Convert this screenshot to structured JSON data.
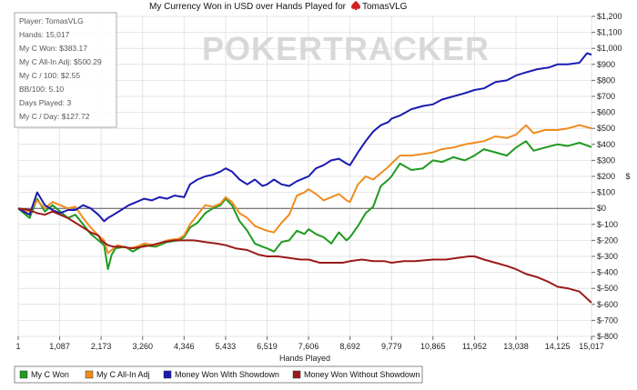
{
  "chart_data": {
    "type": "line",
    "title": "My Currency Won in USD over Hands Played for",
    "player_name": "TomasVLG",
    "xlabel": "Hands Played",
    "ylabel": "$",
    "watermark": "POKERTRACKER",
    "xlim": [
      1,
      15017
    ],
    "ylim": [
      -800,
      1200
    ],
    "x_ticks": [
      "1",
      "1,087",
      "2,173",
      "3,260",
      "4,346",
      "5,433",
      "6,519",
      "7,606",
      "8,692",
      "9,779",
      "10,865",
      "11,952",
      "13,038",
      "14,125",
      "15,017"
    ],
    "y_ticks": [
      "$1,200",
      "$1,100",
      "$1,000",
      "$900",
      "$800",
      "$700",
      "$600",
      "$500",
      "$400",
      "$300",
      "$200",
      "$100",
      "$0",
      "$-100",
      "$-200",
      "$-300",
      "$-400",
      "$-500",
      "$-600",
      "$-700",
      "$-800"
    ],
    "stats": [
      "Player: TomasVLG",
      "Hands: 15,017",
      "My C Won: $383.17",
      "My C All-In Adj: $500.29",
      "My C / 100: $2.55",
      "BB/100: 5.10",
      "Days Played: 3",
      "My C / Day: $127.72"
    ],
    "series": [
      {
        "name": "My C Won",
        "color": "#1f9a1f",
        "points": [
          [
            1,
            0
          ],
          [
            300,
            -60
          ],
          [
            500,
            60
          ],
          [
            700,
            -20
          ],
          [
            900,
            20
          ],
          [
            1100,
            -20
          ],
          [
            1300,
            -60
          ],
          [
            1500,
            -40
          ],
          [
            1700,
            -100
          ],
          [
            1900,
            -160
          ],
          [
            2100,
            -200
          ],
          [
            2250,
            -230
          ],
          [
            2350,
            -380
          ],
          [
            2450,
            -290
          ],
          [
            2550,
            -250
          ],
          [
            2800,
            -240
          ],
          [
            3000,
            -270
          ],
          [
            3300,
            -230
          ],
          [
            3600,
            -240
          ],
          [
            3900,
            -210
          ],
          [
            4200,
            -200
          ],
          [
            4346,
            -180
          ],
          [
            4500,
            -120
          ],
          [
            4700,
            -90
          ],
          [
            4900,
            -30
          ],
          [
            5100,
            0
          ],
          [
            5300,
            20
          ],
          [
            5433,
            60
          ],
          [
            5600,
            20
          ],
          [
            5800,
            -80
          ],
          [
            6000,
            -140
          ],
          [
            6200,
            -220
          ],
          [
            6400,
            -240
          ],
          [
            6519,
            -250
          ],
          [
            6700,
            -270
          ],
          [
            6900,
            -210
          ],
          [
            7100,
            -200
          ],
          [
            7300,
            -140
          ],
          [
            7500,
            -160
          ],
          [
            7606,
            -130
          ],
          [
            7800,
            -160
          ],
          [
            8000,
            -180
          ],
          [
            8200,
            -220
          ],
          [
            8400,
            -150
          ],
          [
            8600,
            -200
          ],
          [
            8692,
            -180
          ],
          [
            8900,
            -110
          ],
          [
            9100,
            -30
          ],
          [
            9300,
            10
          ],
          [
            9500,
            140
          ],
          [
            9700,
            180
          ],
          [
            9779,
            200
          ],
          [
            10000,
            280
          ],
          [
            10300,
            240
          ],
          [
            10600,
            250
          ],
          [
            10865,
            300
          ],
          [
            11100,
            290
          ],
          [
            11400,
            320
          ],
          [
            11700,
            300
          ],
          [
            11952,
            330
          ],
          [
            12200,
            370
          ],
          [
            12500,
            350
          ],
          [
            12800,
            330
          ],
          [
            13038,
            380
          ],
          [
            13300,
            420
          ],
          [
            13500,
            360
          ],
          [
            13800,
            380
          ],
          [
            14125,
            400
          ],
          [
            14400,
            390
          ],
          [
            14700,
            410
          ],
          [
            15017,
            383.17
          ]
        ]
      },
      {
        "name": "My C All-In Adj",
        "color": "#f08c1e",
        "points": [
          [
            1,
            0
          ],
          [
            300,
            -20
          ],
          [
            500,
            50
          ],
          [
            700,
            0
          ],
          [
            900,
            40
          ],
          [
            1100,
            20
          ],
          [
            1300,
            0
          ],
          [
            1500,
            10
          ],
          [
            1700,
            -60
          ],
          [
            1900,
            -120
          ],
          [
            2100,
            -170
          ],
          [
            2250,
            -200
          ],
          [
            2350,
            -280
          ],
          [
            2450,
            -260
          ],
          [
            2600,
            -230
          ],
          [
            2900,
            -250
          ],
          [
            3100,
            -240
          ],
          [
            3300,
            -220
          ],
          [
            3600,
            -230
          ],
          [
            3900,
            -200
          ],
          [
            4200,
            -190
          ],
          [
            4346,
            -170
          ],
          [
            4500,
            -100
          ],
          [
            4700,
            -40
          ],
          [
            4900,
            20
          ],
          [
            5100,
            10
          ],
          [
            5300,
            30
          ],
          [
            5433,
            70
          ],
          [
            5600,
            40
          ],
          [
            5800,
            -30
          ],
          [
            6000,
            -60
          ],
          [
            6200,
            -110
          ],
          [
            6400,
            -130
          ],
          [
            6519,
            -140
          ],
          [
            6700,
            -150
          ],
          [
            6900,
            -90
          ],
          [
            7100,
            -40
          ],
          [
            7300,
            80
          ],
          [
            7500,
            100
          ],
          [
            7606,
            120
          ],
          [
            7800,
            90
          ],
          [
            8000,
            50
          ],
          [
            8200,
            70
          ],
          [
            8400,
            90
          ],
          [
            8600,
            50
          ],
          [
            8692,
            40
          ],
          [
            8900,
            150
          ],
          [
            9100,
            200
          ],
          [
            9300,
            180
          ],
          [
            9500,
            220
          ],
          [
            9700,
            260
          ],
          [
            9779,
            280
          ],
          [
            10000,
            330
          ],
          [
            10300,
            330
          ],
          [
            10600,
            340
          ],
          [
            10865,
            350
          ],
          [
            11100,
            370
          ],
          [
            11400,
            380
          ],
          [
            11700,
            400
          ],
          [
            11952,
            410
          ],
          [
            12200,
            420
          ],
          [
            12500,
            450
          ],
          [
            12800,
            440
          ],
          [
            13038,
            460
          ],
          [
            13300,
            520
          ],
          [
            13500,
            470
          ],
          [
            13800,
            490
          ],
          [
            14125,
            490
          ],
          [
            14400,
            500
          ],
          [
            14700,
            520
          ],
          [
            15017,
            500.29
          ]
        ]
      },
      {
        "name": "Money Won With Showdown",
        "color": "#1b1bb0",
        "points": [
          [
            1,
            0
          ],
          [
            300,
            -40
          ],
          [
            500,
            100
          ],
          [
            700,
            20
          ],
          [
            900,
            -10
          ],
          [
            1100,
            -30
          ],
          [
            1300,
            -10
          ],
          [
            1500,
            -10
          ],
          [
            1700,
            20
          ],
          [
            1900,
            0
          ],
          [
            2100,
            -40
          ],
          [
            2250,
            -80
          ],
          [
            2350,
            -60
          ],
          [
            2500,
            -40
          ],
          [
            2700,
            -10
          ],
          [
            2900,
            20
          ],
          [
            3100,
            40
          ],
          [
            3300,
            60
          ],
          [
            3500,
            50
          ],
          [
            3700,
            70
          ],
          [
            3900,
            60
          ],
          [
            4100,
            80
          ],
          [
            4346,
            70
          ],
          [
            4500,
            150
          ],
          [
            4700,
            180
          ],
          [
            4900,
            200
          ],
          [
            5100,
            210
          ],
          [
            5300,
            230
          ],
          [
            5433,
            250
          ],
          [
            5600,
            230
          ],
          [
            5800,
            180
          ],
          [
            6000,
            150
          ],
          [
            6200,
            180
          ],
          [
            6400,
            140
          ],
          [
            6519,
            150
          ],
          [
            6700,
            180
          ],
          [
            6900,
            150
          ],
          [
            7100,
            140
          ],
          [
            7300,
            170
          ],
          [
            7500,
            190
          ],
          [
            7606,
            200
          ],
          [
            7800,
            250
          ],
          [
            8000,
            270
          ],
          [
            8200,
            300
          ],
          [
            8400,
            310
          ],
          [
            8600,
            280
          ],
          [
            8692,
            270
          ],
          [
            8900,
            350
          ],
          [
            9100,
            420
          ],
          [
            9300,
            480
          ],
          [
            9500,
            520
          ],
          [
            9700,
            540
          ],
          [
            9779,
            560
          ],
          [
            10000,
            580
          ],
          [
            10300,
            620
          ],
          [
            10600,
            640
          ],
          [
            10865,
            650
          ],
          [
            11100,
            680
          ],
          [
            11400,
            700
          ],
          [
            11700,
            720
          ],
          [
            11952,
            740
          ],
          [
            12200,
            750
          ],
          [
            12500,
            790
          ],
          [
            12800,
            800
          ],
          [
            13038,
            830
          ],
          [
            13300,
            850
          ],
          [
            13600,
            870
          ],
          [
            13900,
            880
          ],
          [
            14125,
            900
          ],
          [
            14400,
            900
          ],
          [
            14700,
            910
          ],
          [
            14900,
            970
          ],
          [
            15017,
            960
          ]
        ]
      },
      {
        "name": "Money Won Without Showdown",
        "color": "#9b1a1a",
        "points": [
          [
            1,
            0
          ],
          [
            300,
            -10
          ],
          [
            500,
            -30
          ],
          [
            700,
            -40
          ],
          [
            900,
            -20
          ],
          [
            1100,
            -40
          ],
          [
            1300,
            -60
          ],
          [
            1500,
            -90
          ],
          [
            1700,
            -120
          ],
          [
            1900,
            -150
          ],
          [
            2100,
            -170
          ],
          [
            2173,
            -200
          ],
          [
            2350,
            -230
          ],
          [
            2500,
            -240
          ],
          [
            2700,
            -240
          ],
          [
            3000,
            -250
          ],
          [
            3260,
            -240
          ],
          [
            3500,
            -230
          ],
          [
            3800,
            -210
          ],
          [
            4100,
            -200
          ],
          [
            4346,
            -200
          ],
          [
            4600,
            -200
          ],
          [
            4900,
            -210
          ],
          [
            5200,
            -220
          ],
          [
            5433,
            -230
          ],
          [
            5700,
            -250
          ],
          [
            6000,
            -260
          ],
          [
            6300,
            -290
          ],
          [
            6519,
            -300
          ],
          [
            6800,
            -300
          ],
          [
            7100,
            -310
          ],
          [
            7400,
            -320
          ],
          [
            7606,
            -320
          ],
          [
            7900,
            -340
          ],
          [
            8200,
            -340
          ],
          [
            8500,
            -340
          ],
          [
            8692,
            -330
          ],
          [
            9000,
            -320
          ],
          [
            9300,
            -330
          ],
          [
            9600,
            -330
          ],
          [
            9779,
            -340
          ],
          [
            10100,
            -330
          ],
          [
            10400,
            -330
          ],
          [
            10865,
            -320
          ],
          [
            11200,
            -320
          ],
          [
            11500,
            -310
          ],
          [
            11800,
            -300
          ],
          [
            11952,
            -300
          ],
          [
            12200,
            -320
          ],
          [
            12500,
            -340
          ],
          [
            12800,
            -360
          ],
          [
            13038,
            -380
          ],
          [
            13300,
            -410
          ],
          [
            13600,
            -430
          ],
          [
            13900,
            -460
          ],
          [
            14125,
            -490
          ],
          [
            14400,
            -500
          ],
          [
            14700,
            -520
          ],
          [
            15017,
            -590
          ]
        ]
      }
    ]
  }
}
